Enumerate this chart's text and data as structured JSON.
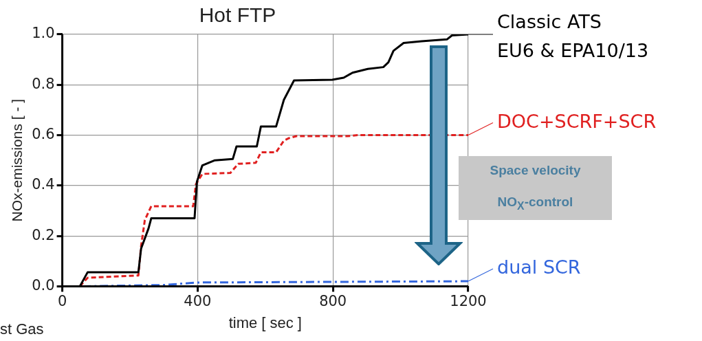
{
  "chart_data": {
    "type": "line",
    "title": "Hot FTP",
    "xlabel": "time [ sec ]",
    "ylabel": "NOx-emissions [ - ]",
    "xlim": [
      0,
      1200
    ],
    "xticks": [
      0,
      400,
      800,
      1200
    ],
    "ylim": [
      0,
      1
    ],
    "yticks": [
      {
        "value": 0,
        "label": "0.0"
      },
      0.2,
      0.4,
      0.6,
      0.8,
      {
        "value": 1,
        "label": "1.0"
      }
    ],
    "grid": true,
    "legend": "right",
    "marker": "none",
    "series": [
      {
        "name": "Classic ATS\nEU6 & EPA10/13",
        "color": "#000000",
        "line_style": "solid",
        "x": [
          52,
          75,
          225,
          233,
          255,
          263,
          391,
          398,
          414,
          451,
          504,
          515,
          575,
          587,
          632,
          655,
          685,
          798,
          832,
          858,
          903,
          949,
          964,
          979,
          1009,
          1062,
          1137,
          1152,
          1200
        ],
        "values": [
          0,
          0.056,
          0.056,
          0.15,
          0.23,
          0.27,
          0.27,
          0.415,
          0.48,
          0.5,
          0.505,
          0.555,
          0.555,
          0.634,
          0.634,
          0.74,
          0.817,
          0.82,
          0.828,
          0.848,
          0.863,
          0.87,
          0.889,
          0.935,
          0.966,
          0.973,
          0.98,
          0.996,
          1.0
        ]
      },
      {
        "name": "DOC+SCRF+SCR",
        "color": "#e02020",
        "line_style": "dashed",
        "x": [
          52,
          75,
          225,
          233,
          244,
          263,
          387,
          395,
          414,
          497,
          520,
          572,
          587,
          632,
          655,
          670,
          692,
          843,
          873,
          1200
        ],
        "values": [
          0,
          0.034,
          0.043,
          0.16,
          0.263,
          0.318,
          0.318,
          0.405,
          0.446,
          0.45,
          0.486,
          0.49,
          0.532,
          0.532,
          0.578,
          0.588,
          0.596,
          0.596,
          0.6,
          0.6
        ]
      },
      {
        "name": "dual SCR",
        "color": "#3366dd",
        "line_style": "dashdot",
        "x": [
          60,
          300,
          400,
          1200
        ],
        "values": [
          0,
          0.005,
          0.015,
          0.02
        ]
      }
    ],
    "annotations": [
      "Space velocity\nNO$_{X}$-control",
      "st Gas"
    ]
  }
}
